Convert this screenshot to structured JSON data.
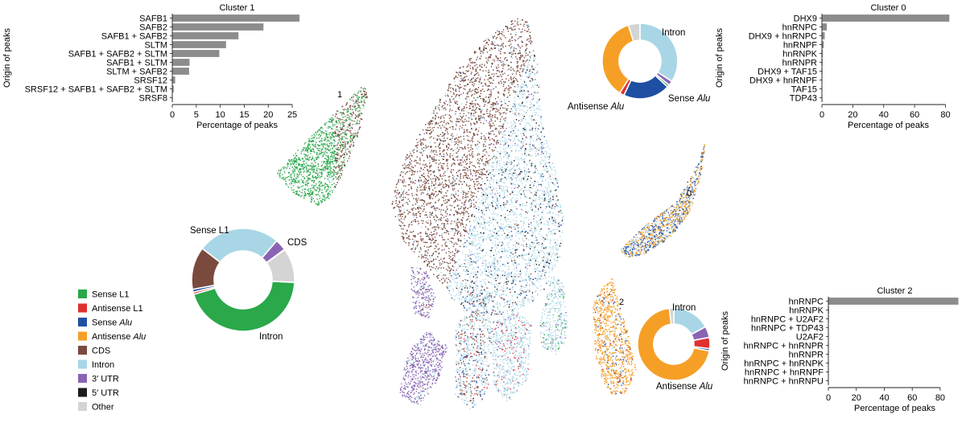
{
  "colors": {
    "sense_l1": "#2aa84a",
    "antisense_l1": "#e0312f",
    "sense_alu": "#1f4fa3",
    "antisense_alu": "#f59f26",
    "cds": "#7b4a3e",
    "intron": "#a8d6e6",
    "utr3": "#8a64b4",
    "utr5": "#1b1b1b",
    "other": "#d4d4d4",
    "bar": "#8c8c8c"
  },
  "legend": [
    {
      "label": "Sense L1",
      "key": "sense_l1"
    },
    {
      "label": "Antisense L1",
      "key": "antisense_l1"
    },
    {
      "label": "Sense ",
      "italic": "Alu",
      "key": "sense_alu"
    },
    {
      "label": "Antisense ",
      "italic": "Alu",
      "key": "antisense_alu"
    },
    {
      "label": "CDS",
      "key": "cds"
    },
    {
      "label": "Intron",
      "key": "intron"
    },
    {
      "label": "3′ UTR",
      "key": "utr3"
    },
    {
      "label": "5′ UTR",
      "key": "utr5"
    },
    {
      "label": "Other",
      "key": "other"
    }
  ],
  "cluster_labels": [
    "1",
    "0",
    "2"
  ],
  "chart_data": [
    {
      "type": "bar",
      "orientation": "horizontal",
      "title": "Cluster 1",
      "xlabel": "Percentage of peaks",
      "ylabel": "Origin of peaks",
      "categories": [
        "SAFB1",
        "SAFB2",
        "SAFB1 + SAFB2",
        "SLTM",
        "SAFB1 + SAFB2 + SLTM",
        "SAFB1 + SLTM",
        "SLTM + SAFB2",
        "SRSF12",
        "SRSF12 + SAFB1 + SAFB2 + SLTM",
        "SRSF8"
      ],
      "values": [
        26.5,
        19,
        13.8,
        11.2,
        9.8,
        3.6,
        3.5,
        0.6,
        0.3,
        0.1
      ],
      "xlim": [
        0,
        27
      ],
      "xticks": [
        0,
        5,
        10,
        15,
        20,
        25
      ]
    },
    {
      "type": "bar",
      "orientation": "horizontal",
      "title": "Cluster 0",
      "xlabel": "Percentage of peaks",
      "ylabel": "Origin of peaks",
      "categories": [
        "DHX9",
        "hnRNPC",
        "DHX9 + hnRNPC",
        "hnRNPF",
        "hnRNPK",
        "hnRNPR",
        "DHX9 + TAF15",
        "DHX9 + hnRNPF",
        "TAF15",
        "TDP43"
      ],
      "values": [
        82.5,
        3.2,
        1.8,
        1.2,
        0.6,
        0.5,
        0.4,
        0.3,
        0.2,
        0.1
      ],
      "xlim": [
        0,
        86
      ],
      "xticks": [
        0,
        20,
        40,
        60,
        80
      ]
    },
    {
      "type": "bar",
      "orientation": "horizontal",
      "title": "Cluster 2",
      "xlabel": "Percentage of peaks",
      "ylabel": "Origin of peaks",
      "categories": [
        "hnRNPC",
        "hnRNPK",
        "hnRNPC + U2AF2",
        "hnRNPC + TDP43",
        "U2AF2",
        "hnRNPC + hnRNPR",
        "hnRNPR",
        "hnRNPC + hnRNPK",
        "hnRNPC + hnRNPF",
        "hnRNPC + hnRNPU"
      ],
      "values": [
        93,
        0.5,
        0.4,
        0.3,
        0.2,
        0.2,
        0.1,
        0.1,
        0.1,
        0.1
      ],
      "xlim": [
        0,
        95
      ],
      "xticks": [
        0,
        20,
        40,
        60,
        80
      ]
    },
    {
      "type": "pie",
      "subtype": "donut",
      "categories": [
        "Sense L1",
        "Antisense L1",
        "Sense Alu",
        "Antisense Alu",
        "CDS",
        "Intron",
        "3′ UTR",
        "5′ UTR",
        "Other"
      ],
      "values": [
        50,
        0.8,
        1,
        0,
        15,
        29,
        4,
        0.2,
        12
      ],
      "slice_labels": [
        {
          "text": "Sense L1",
          "slice": "Sense L1"
        },
        {
          "text": "CDS",
          "slice": "CDS"
        },
        {
          "text": "Intron",
          "slice": "Intron"
        }
      ]
    },
    {
      "type": "pie",
      "subtype": "donut",
      "categories": [
        "Intron",
        "3′ UTR",
        "Sense L1",
        "Sense Alu",
        "Antisense L1",
        "Antisense Alu",
        "Other"
      ],
      "values": [
        34,
        2,
        1,
        20,
        2,
        36,
        5
      ],
      "slice_labels": [
        {
          "text": "Intron",
          "slice": "Intron"
        },
        {
          "text": "Sense Alu",
          "slice": "Sense Alu"
        },
        {
          "text": "Antisense Alu",
          "slice": "Antisense Alu"
        }
      ]
    },
    {
      "type": "pie",
      "subtype": "donut",
      "categories": [
        "Intron",
        "3′ UTR",
        "Antisense L1",
        "Sense Alu",
        "Antisense Alu",
        "Other"
      ],
      "values": [
        17,
        5,
        5,
        1,
        70,
        2
      ],
      "slice_labels": [
        {
          "text": "Intron",
          "slice": "Intron"
        },
        {
          "text": "Antisense Alu",
          "slice": "Antisense Alu"
        }
      ]
    },
    {
      "type": "scatter",
      "description_groups": [
        "cluster 1",
        "main cluster",
        "cluster 0",
        "cluster 2"
      ]
    }
  ]
}
